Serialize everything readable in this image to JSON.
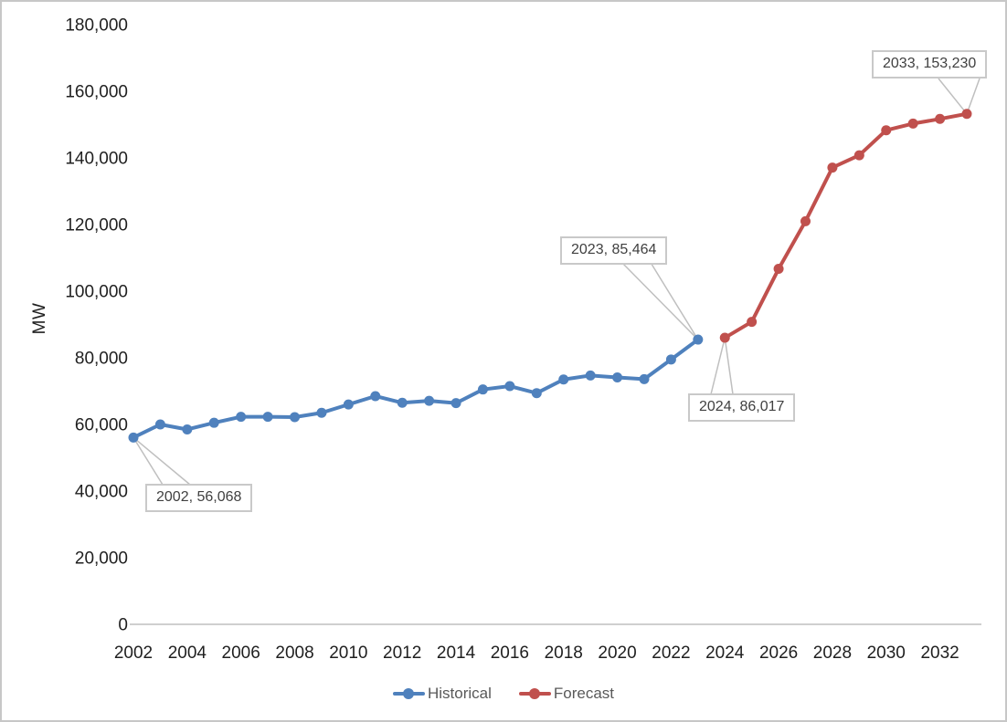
{
  "chart_data": {
    "type": "line",
    "title": "",
    "xlabel": "",
    "ylabel": "MW",
    "ylim": [
      0,
      180000
    ],
    "xlim": [
      2002,
      2033
    ],
    "grid": false,
    "legend_position": "bottom",
    "y_ticks": {
      "values": [
        0,
        20000,
        40000,
        60000,
        80000,
        100000,
        120000,
        140000,
        160000,
        180000
      ],
      "labels": [
        "0",
        "20,000",
        "40,000",
        "60,000",
        "80,000",
        "100,000",
        "120,000",
        "140,000",
        "160,000",
        "180,000"
      ]
    },
    "x_ticks": {
      "values": [
        2002,
        2004,
        2006,
        2008,
        2010,
        2012,
        2014,
        2016,
        2018,
        2020,
        2022,
        2024,
        2026,
        2028,
        2030,
        2032
      ],
      "labels": [
        "2002",
        "2004",
        "2006",
        "2008",
        "2010",
        "2012",
        "2014",
        "2016",
        "2018",
        "2020",
        "2022",
        "2024",
        "2026",
        "2028",
        "2030",
        "2032"
      ]
    },
    "series": [
      {
        "name": "Historical",
        "color": "#4F81BD",
        "years": [
          2002,
          2003,
          2004,
          2005,
          2006,
          2007,
          2008,
          2009,
          2010,
          2011,
          2012,
          2013,
          2014,
          2015,
          2016,
          2017,
          2018,
          2019,
          2020,
          2021,
          2022,
          2023
        ],
        "values": [
          56068,
          60000,
          58500,
          60500,
          62300,
          62300,
          62200,
          63500,
          66000,
          68500,
          66500,
          67100,
          66400,
          70500,
          71500,
          69400,
          73500,
          74700,
          74100,
          73600,
          79500,
          85464
        ]
      },
      {
        "name": "Forecast",
        "color": "#C0504D",
        "years": [
          2024,
          2025,
          2026,
          2027,
          2028,
          2029,
          2030,
          2031,
          2032,
          2033
        ],
        "values": [
          86017,
          90800,
          106700,
          121000,
          137100,
          140800,
          148300,
          150300,
          151700,
          153230
        ]
      }
    ],
    "annotations": [
      {
        "label": "2002, 56,068",
        "year": 2002,
        "value": 56068
      },
      {
        "label": "2023, 85,464",
        "year": 2023,
        "value": 85464
      },
      {
        "label": "2024, 86,017",
        "year": 2024,
        "value": 86017
      },
      {
        "label": "2033, 153,230",
        "year": 2033,
        "value": 153230
      }
    ],
    "colors": {
      "axis_line": "#BFBFBF",
      "tick_label": "#1f1f1f",
      "callout_border": "#C9C9C9",
      "callout_text": "#404040",
      "legend_text": "#595959"
    }
  }
}
